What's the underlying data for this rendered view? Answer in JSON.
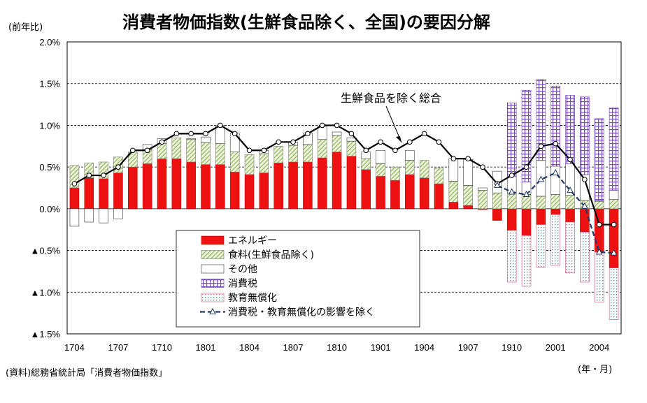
{
  "title": "消費者物価指数(生鮮食品除く、全国)の要因分解",
  "unit_label": "(前年比)",
  "source": "(資料)総務省統計局「消費者物価指数」",
  "x_unit_label": "(年・月)",
  "annotation": "生鮮食品を除く総合",
  "colors": {
    "energy": "#ee1111",
    "food": "#b9cf96",
    "other": "#ffffff",
    "tax": "#8a5cc7",
    "education": "#e06c8c",
    "line_total": "#000000",
    "line_excl": "#1f3a68"
  },
  "chart_data": {
    "type": "bar",
    "ylim": [
      -1.5,
      2.0
    ],
    "yticks": [
      {
        "value": 2.0,
        "label": "2.0%"
      },
      {
        "value": 1.5,
        "label": "1.5%"
      },
      {
        "value": 1.0,
        "label": "1.0%"
      },
      {
        "value": 0.5,
        "label": "0.5%"
      },
      {
        "value": 0.0,
        "label": "0.0%"
      },
      {
        "value": -0.5,
        "label": "▲0.5%"
      },
      {
        "value": -1.0,
        "label": "▲1.0%"
      },
      {
        "value": -1.5,
        "label": "▲1.5%"
      }
    ],
    "xticklabels": [
      {
        "index": 0,
        "label": "1704"
      },
      {
        "index": 3,
        "label": "1707"
      },
      {
        "index": 6,
        "label": "1710"
      },
      {
        "index": 9,
        "label": "1801"
      },
      {
        "index": 12,
        "label": "1804"
      },
      {
        "index": 15,
        "label": "1807"
      },
      {
        "index": 18,
        "label": "1810"
      },
      {
        "index": 21,
        "label": "1901"
      },
      {
        "index": 24,
        "label": "1904"
      },
      {
        "index": 27,
        "label": "1907"
      },
      {
        "index": 30,
        "label": "1910"
      },
      {
        "index": 33,
        "label": "2001"
      },
      {
        "index": 36,
        "label": "2004"
      }
    ],
    "grid": "horizontal dashed",
    "legend_position": "bottom-center",
    "stack_series": [
      {
        "key": "energy",
        "name": "エネルギー",
        "values": [
          0.25,
          0.37,
          0.36,
          0.43,
          0.5,
          0.54,
          0.6,
          0.6,
          0.56,
          0.53,
          0.53,
          0.44,
          0.41,
          0.43,
          0.55,
          0.56,
          0.56,
          0.61,
          0.68,
          0.63,
          0.47,
          0.39,
          0.34,
          0.41,
          0.37,
          0.3,
          0.08,
          0.04,
          -0.01,
          -0.14,
          -0.26,
          -0.32,
          -0.19,
          -0.07,
          -0.16,
          -0.28,
          -0.52,
          -0.71
        ]
      },
      {
        "key": "food",
        "name": "食料(生鮮食品除く)",
        "values": [
          0.27,
          0.18,
          0.2,
          0.19,
          0.18,
          0.17,
          0.18,
          0.25,
          0.27,
          0.26,
          0.25,
          0.24,
          0.24,
          0.23,
          0.2,
          0.2,
          0.21,
          0.22,
          0.2,
          0.18,
          0.13,
          0.15,
          0.16,
          0.17,
          0.21,
          0.19,
          0.25,
          0.24,
          0.22,
          0.19,
          0.19,
          0.17,
          0.15,
          0.17,
          0.16,
          0.1,
          0.09,
          0.11
        ]
      },
      {
        "key": "other",
        "name": "その他",
        "values": [
          -0.21,
          -0.16,
          -0.17,
          -0.12,
          0.0,
          0.06,
          0.06,
          0.0,
          0.01,
          0.07,
          0.22,
          0.23,
          0.0,
          0.04,
          0.0,
          0.04,
          0.14,
          0.16,
          0.04,
          0.04,
          0.08,
          0.16,
          0.0,
          0.12,
          0.0,
          0.0,
          0.27,
          0.31,
          0.03,
          0.26,
          0.2,
          0.15,
          0.43,
          0.34,
          0.38,
          0.31,
          0.01,
          0.11
        ]
      },
      {
        "key": "tax",
        "name": "消費税",
        "values": [
          0,
          0,
          0,
          0,
          0,
          0,
          0,
          0,
          0,
          0,
          0,
          0,
          0,
          0,
          0,
          0,
          0,
          0,
          0,
          0,
          0,
          0,
          0,
          0,
          0,
          0,
          0,
          0,
          0,
          0,
          0.88,
          1.1,
          0.97,
          0.96,
          0.82,
          0.93,
          0.98,
          0.99
        ]
      },
      {
        "key": "education",
        "name": "教育無償化",
        "values": [
          0,
          0,
          0,
          0,
          0,
          0,
          0,
          0,
          0,
          0,
          0,
          0,
          0,
          0,
          0,
          0,
          0,
          0,
          0,
          0,
          0,
          0,
          0,
          0,
          0,
          0,
          0,
          0,
          0,
          0,
          -0.62,
          -0.61,
          -0.51,
          -0.61,
          -0.61,
          -0.6,
          -0.6,
          -0.62
        ]
      }
    ],
    "line_series": [
      {
        "key": "total",
        "name": "生鮮食品を除く総合",
        "values": [
          0.3,
          0.4,
          0.4,
          0.5,
          0.7,
          0.7,
          0.8,
          0.9,
          0.9,
          0.9,
          1.0,
          0.9,
          0.7,
          0.7,
          0.8,
          0.8,
          0.9,
          1.0,
          1.0,
          0.9,
          0.7,
          0.8,
          0.7,
          0.8,
          0.9,
          0.8,
          0.6,
          0.6,
          0.5,
          0.3,
          0.4,
          0.5,
          0.75,
          0.78,
          0.59,
          0.35,
          -0.19,
          -0.19
        ]
      },
      {
        "key": "excl",
        "name": "消費税・教育無償化の影響を除く",
        "start_index": 29,
        "values": [
          0.28,
          0.2,
          0.17,
          0.35,
          0.43,
          0.22,
          0.03,
          -0.52,
          -0.53
        ]
      }
    ]
  }
}
